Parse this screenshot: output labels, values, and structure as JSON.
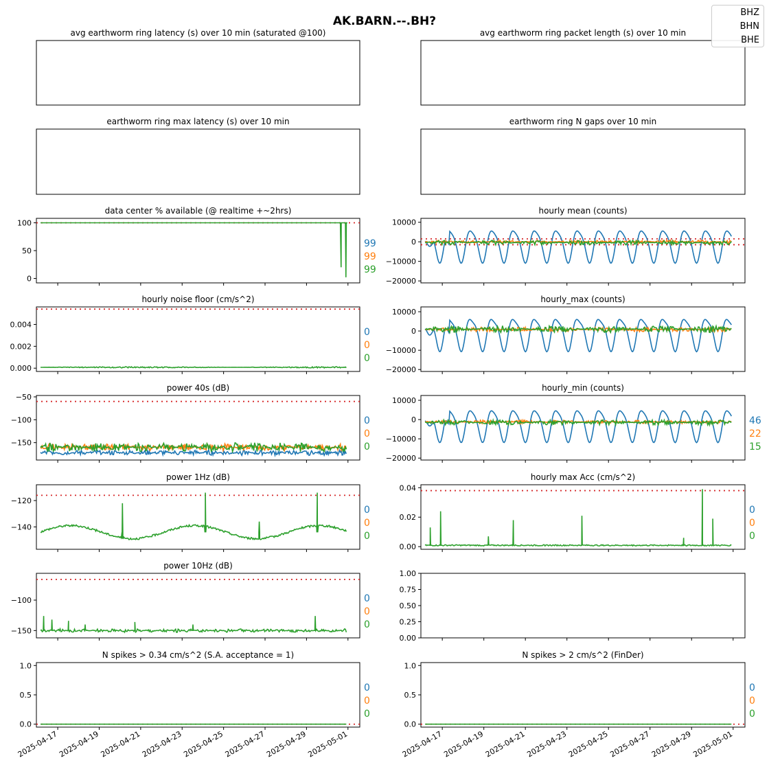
{
  "figure_title": "AK.BARN.--.BH?",
  "colors": {
    "BHZ": "#1f77b4",
    "BHN": "#ff7f0e",
    "BHE": "#2ca02c",
    "threshold": "#d62728"
  },
  "legend": {
    "entries": [
      "BHZ",
      "BHN",
      "BHE"
    ]
  },
  "x_axis": {
    "tick_labels": [
      "2025-04-17",
      "2025-04-19",
      "2025-04-21",
      "2025-04-23",
      "2025-04-25",
      "2025-04-27",
      "2025-04-29",
      "2025-05-01"
    ],
    "range": [
      "2025-04-16",
      "2025-05-01"
    ]
  },
  "chart_data": [
    {
      "id": "ring_latency",
      "type": "line",
      "title": "avg earthworm ring latency (s)   over 10 min (saturated @100)",
      "yticks": [],
      "ylim": null,
      "side_labels": [],
      "series": []
    },
    {
      "id": "ring_packet_length",
      "type": "line",
      "title": "avg earthworm ring packet length (s)   over 10 min",
      "yticks": [],
      "ylim": null,
      "side_labels": [],
      "series": []
    },
    {
      "id": "ring_max_latency",
      "type": "line",
      "title": "earthworm ring max latency (s)   over 10 min",
      "yticks": [],
      "ylim": null,
      "side_labels": [],
      "series": []
    },
    {
      "id": "ring_n_gaps",
      "type": "line",
      "title": "earthworm ring N gaps   over 10 min",
      "yticks": [],
      "ylim": null,
      "side_labels": [],
      "series": []
    },
    {
      "id": "availability",
      "type": "line",
      "title": "data center % available (@ realtime +~2hrs)",
      "ylim": [
        -8,
        108
      ],
      "yticks": [
        {
          "v": 0,
          "t": "0"
        },
        {
          "v": 50,
          "t": "50"
        },
        {
          "v": 100,
          "t": "100"
        }
      ],
      "threshold": 100,
      "side_labels": [
        "99",
        "99",
        "99"
      ],
      "series": [
        {
          "name": "BHE",
          "kind": "dips",
          "base": 100,
          "dips": [
            [
              14.55,
              20
            ],
            [
              14.68,
              100
            ],
            [
              14.72,
              100
            ],
            [
              14.78,
              2
            ],
            [
              14.85,
              100
            ]
          ]
        }
      ]
    },
    {
      "id": "hourly_mean",
      "type": "line",
      "title": "hourly mean (counts)",
      "ylim": [
        -21000,
        12000
      ],
      "yticks": [
        {
          "v": -20000,
          "t": "−20000"
        },
        {
          "v": -10000,
          "t": "−10000"
        },
        {
          "v": 0,
          "t": "0"
        },
        {
          "v": 10000,
          "t": "10000"
        }
      ],
      "threshold": [
        1500,
        -1500
      ],
      "side_labels": [],
      "series": [
        {
          "name": "BHZ",
          "kind": "tidal",
          "amp": 8000,
          "offset": -1500,
          "period": 1.03,
          "phase": 0.2,
          "extra": 0.5
        },
        {
          "name": "BHN",
          "kind": "noise",
          "base": 0,
          "amp": 900,
          "period": 0.5
        },
        {
          "name": "BHE",
          "kind": "noise",
          "base": -400,
          "amp": 1200,
          "period": 0.7
        }
      ]
    },
    {
      "id": "noise_floor",
      "type": "line",
      "title": "hourly noise floor (cm/s^2)",
      "ylim": [
        -0.0003,
        0.0056
      ],
      "yticks": [
        {
          "v": 0,
          "t": "0.000"
        },
        {
          "v": 0.002,
          "t": "0.002"
        },
        {
          "v": 0.004,
          "t": "0.004"
        }
      ],
      "threshold": 0.0054,
      "side_labels": [
        "0",
        "0",
        "0"
      ],
      "series": [
        {
          "name": "BHE",
          "kind": "noise",
          "base": 8e-05,
          "amp": 6e-05,
          "period": 3
        }
      ]
    },
    {
      "id": "hourly_max",
      "type": "line",
      "title": "hourly_max (counts)",
      "ylim": [
        -21000,
        12500
      ],
      "yticks": [
        {
          "v": -20000,
          "t": "−20000"
        },
        {
          "v": -10000,
          "t": "−10000"
        },
        {
          "v": 0,
          "t": "0"
        },
        {
          "v": 10000,
          "t": "10000"
        }
      ],
      "threshold": null,
      "side_labels": [],
      "series": [
        {
          "name": "BHZ",
          "kind": "tidal",
          "amp": 8000,
          "offset": -1000,
          "period": 1.03,
          "phase": 0.2,
          "extra": 0.6
        },
        {
          "name": "BHN",
          "kind": "noise",
          "base": 800,
          "amp": 1200,
          "period": 0.6
        },
        {
          "name": "BHE",
          "kind": "noise",
          "base": 1000,
          "amp": 1800,
          "period": 0.8
        }
      ]
    },
    {
      "id": "power_40s",
      "type": "line",
      "title": "power 40s (dB)",
      "ylim": [
        -188,
        -47
      ],
      "yticks": [
        {
          "v": -150,
          "t": "−150"
        },
        {
          "v": -100,
          "t": "−100"
        },
        {
          "v": -50,
          "t": "−50"
        }
      ],
      "threshold": -60,
      "side_labels": [
        "0",
        "0",
        "0"
      ],
      "series": [
        {
          "name": "BHZ",
          "kind": "noise",
          "base": -172,
          "amp": 6,
          "period": 0.25
        },
        {
          "name": "BHN",
          "kind": "noise",
          "base": -160,
          "amp": 8,
          "period": 0.3
        },
        {
          "name": "BHE",
          "kind": "noise",
          "base": -160,
          "amp": 10,
          "period": 0.35
        }
      ]
    },
    {
      "id": "hourly_min",
      "type": "line",
      "title": "hourly_min (counts)",
      "ylim": [
        -21000,
        12500
      ],
      "yticks": [
        {
          "v": -20000,
          "t": "−20000"
        },
        {
          "v": -10000,
          "t": "−10000"
        },
        {
          "v": 0,
          "t": "0"
        },
        {
          "v": 10000,
          "t": "10000"
        }
      ],
      "threshold": null,
      "side_labels": [
        "46",
        "22",
        "15"
      ],
      "series": [
        {
          "name": "BHZ",
          "kind": "tidal",
          "amp": 8000,
          "offset": -2500,
          "period": 1.03,
          "phase": 0.2,
          "extra": 0.5
        },
        {
          "name": "BHN",
          "kind": "noise",
          "base": -1200,
          "amp": 900,
          "period": 0.6
        },
        {
          "name": "BHE",
          "kind": "noise",
          "base": -1500,
          "amp": 1400,
          "period": 0.8
        }
      ]
    },
    {
      "id": "power_1hz",
      "type": "line",
      "title": "power 1Hz (dB)",
      "ylim": [
        -157,
        -108
      ],
      "yticks": [
        {
          "v": -140,
          "t": "−140"
        },
        {
          "v": -120,
          "t": "−120"
        }
      ],
      "threshold": -116,
      "side_labels": [
        "0",
        "0",
        "0"
      ],
      "series": [
        {
          "name": "BHE",
          "kind": "wave",
          "base": -144,
          "amp": 5,
          "period": 6,
          "spikes": [
            [
              4.0,
              -122
            ],
            [
              8.0,
              -114
            ],
            [
              13.4,
              -114
            ],
            [
              10.6,
              -136
            ]
          ]
        }
      ]
    },
    {
      "id": "hourly_max_acc",
      "type": "line",
      "title": "hourly max Acc (cm/s^2)",
      "ylim": [
        -0.0018,
        0.042
      ],
      "yticks": [
        {
          "v": 0,
          "t": "0.00"
        },
        {
          "v": 0.02,
          "t": "0.02"
        },
        {
          "v": 0.04,
          "t": "0.04"
        }
      ],
      "threshold": 0.038,
      "side_labels": [
        "0",
        "0",
        "0"
      ],
      "series": [
        {
          "name": "BHE",
          "kind": "spiky",
          "base": 0.0005,
          "spikes": [
            [
              0.3,
              0.013
            ],
            [
              0.8,
              0.024
            ],
            [
              3.1,
              0.007
            ],
            [
              4.3,
              0.018
            ],
            [
              7.6,
              0.021
            ],
            [
              12.5,
              0.006
            ],
            [
              13.4,
              0.039
            ],
            [
              13.9,
              0.019
            ]
          ]
        }
      ]
    },
    {
      "id": "power_10hz",
      "type": "line",
      "title": "power 10Hz (dB)",
      "ylim": [
        -162,
        -56
      ],
      "yticks": [
        {
          "v": -150,
          "t": "−150"
        },
        {
          "v": -100,
          "t": "−100"
        }
      ],
      "threshold": -66,
      "side_labels": [
        "0",
        "0",
        "0"
      ],
      "series": [
        {
          "name": "BHE",
          "kind": "noise",
          "base": -150,
          "amp": 3,
          "period": 0.2,
          "spikes": [
            [
              0.2,
              -126
            ],
            [
              0.6,
              -132
            ],
            [
              1.4,
              -134
            ],
            [
              2.2,
              -140
            ],
            [
              4.6,
              -136
            ],
            [
              7.4,
              -140
            ],
            [
              13.3,
              -126
            ]
          ]
        }
      ]
    },
    {
      "id": "empty_panel",
      "type": "line",
      "title": "",
      "ylim": [
        0,
        1
      ],
      "yticks": [
        {
          "v": 0,
          "t": "0.00"
        },
        {
          "v": 0.25,
          "t": "0.25"
        },
        {
          "v": 0.5,
          "t": "0.50"
        },
        {
          "v": 0.75,
          "t": "0.75"
        },
        {
          "v": 1.0,
          "t": "1.00"
        }
      ],
      "threshold": null,
      "side_labels": [],
      "series": []
    },
    {
      "id": "n_spikes_034",
      "type": "line",
      "title": "N spikes > 0.34 cm/s^2 (S.A. acceptance = 1)",
      "ylim": [
        -0.05,
        1.05
      ],
      "yticks": [
        {
          "v": 0,
          "t": "0.0"
        },
        {
          "v": 0.5,
          "t": "0.5"
        },
        {
          "v": 1.0,
          "t": "1.0"
        }
      ],
      "threshold": 0,
      "side_labels": [
        "0",
        "0",
        "0"
      ],
      "series": [
        {
          "name": "BHE",
          "kind": "flat",
          "base": 0
        }
      ]
    },
    {
      "id": "n_spikes_2",
      "type": "line",
      "title": "N spikes > 2 cm/s^2 (FinDer)",
      "ylim": [
        -0.05,
        1.05
      ],
      "yticks": [
        {
          "v": 0,
          "t": "0.0"
        },
        {
          "v": 0.5,
          "t": "0.5"
        },
        {
          "v": 1.0,
          "t": "1.0"
        }
      ],
      "threshold": 0,
      "side_labels": [
        "0",
        "0",
        "0"
      ],
      "series": [
        {
          "name": "BHE",
          "kind": "flat",
          "base": 0
        }
      ]
    }
  ]
}
